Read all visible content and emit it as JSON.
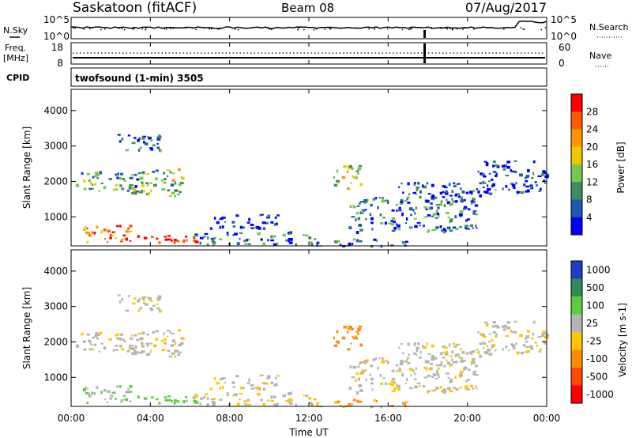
{
  "header": {
    "station": "Saskatoon (fitACF)",
    "beam": "Beam 08",
    "date": "07/Aug/2017"
  },
  "noise_panel": {
    "left_label": "N.Sky",
    "right_label": "N.Search",
    "left_ticks": [
      "10^5",
      "10^0"
    ],
    "right_ticks": [
      "10^5",
      "10^0"
    ]
  },
  "freq_panel": {
    "left_label_1": "Freq.",
    "left_label_2": "[MHz]",
    "right_label": "Nave",
    "left_ticks": [
      "18",
      "8"
    ],
    "right_ticks": [
      "60",
      "0"
    ]
  },
  "cpid": {
    "label": "CPID",
    "program": "twofsound (1-min) 3505"
  },
  "axes": {
    "ylabel": "Slant Range [km]",
    "xlabel": "Time UT",
    "y_ticks": [
      "4000",
      "3000",
      "2000",
      "1000"
    ],
    "x_ticks": [
      "00:00",
      "04:00",
      "08:00",
      "12:00",
      "16:00",
      "20:00",
      "00:00"
    ]
  },
  "power_scale": {
    "title": "Power [dB]",
    "ticks": [
      "28",
      "24",
      "20",
      "16",
      "12",
      "8",
      "4"
    ],
    "colors": [
      "#ff0000",
      "#ff5a00",
      "#ff9600",
      "#f0c800",
      "#78c850",
      "#3c8c64",
      "#1e5ab4",
      "#0000ff"
    ]
  },
  "velocity_scale": {
    "title": "Velocity [m s-1]",
    "ticks": [
      "1000",
      "500",
      "100",
      "25",
      "-25",
      "-100",
      "-500",
      "-1000"
    ],
    "colors": [
      "#1e3cc8",
      "#2d8c5a",
      "#5acd3c",
      "#b4b4b4",
      "#ffc800",
      "#ff8c00",
      "#ff4b00",
      "#ff0000"
    ]
  },
  "chart_data": {
    "type": "heatmap",
    "x_axis": "Time UT (hours)",
    "x_range": [
      0,
      24
    ],
    "y_range": [
      180,
      4600
    ],
    "power_ranges_dB": [
      4,
      28
    ],
    "velocity_ranges_mps": [
      -1000,
      1000
    ],
    "echo_regions": [
      {
        "t": [
          0.2,
          3.6
        ],
        "r": [
          1750,
          2300
        ],
        "power": 12,
        "velocity": 0
      },
      {
        "t": [
          3.0,
          5.6
        ],
        "r": [
          1600,
          2400
        ],
        "power": 14,
        "velocity": 0
      },
      {
        "t": [
          2.2,
          4.6
        ],
        "r": [
          2900,
          3400
        ],
        "power": 8,
        "velocity": 0
      },
      {
        "t": [
          0.5,
          3.0
        ],
        "r": [
          300,
          800
        ],
        "power": 22,
        "velocity": 60
      },
      {
        "t": [
          2.5,
          6.5
        ],
        "r": [
          250,
          500
        ],
        "power": 28,
        "velocity": 120
      },
      {
        "t": [
          6.0,
          12.0
        ],
        "r": [
          250,
          600
        ],
        "power": 10,
        "velocity": 0
      },
      {
        "t": [
          7.0,
          10.5
        ],
        "r": [
          700,
          1100
        ],
        "power": 6,
        "velocity": 0
      },
      {
        "t": [
          12.0,
          17.0
        ],
        "r": [
          200,
          400
        ],
        "power": 10,
        "velocity": -60
      },
      {
        "t": [
          13.2,
          14.6
        ],
        "r": [
          1800,
          2500
        ],
        "power": 16,
        "velocity": -150
      },
      {
        "t": [
          14.0,
          20.5
        ],
        "r": [
          600,
          1600
        ],
        "power": 10,
        "velocity": 0
      },
      {
        "t": [
          16.5,
          21.5
        ],
        "r": [
          1600,
          2000
        ],
        "power": 8,
        "velocity": 0
      },
      {
        "t": [
          20.5,
          24.0
        ],
        "r": [
          1700,
          2600
        ],
        "power": 6,
        "velocity": 0
      }
    ]
  }
}
